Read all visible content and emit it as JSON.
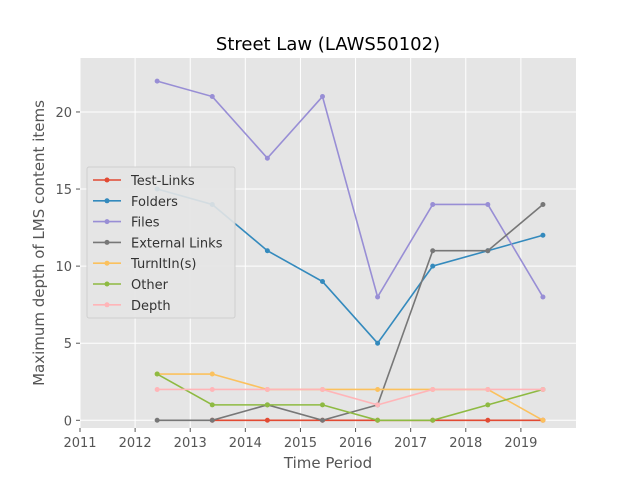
{
  "chart_data": {
    "type": "line",
    "title": "Street Law (LAWS50102)",
    "xlabel": "Time Period",
    "ylabel": "Maximum depth of LMS content items",
    "xlim": [
      2011,
      2020
    ],
    "ylim": [
      -0.5,
      23.5
    ],
    "xticks": [
      2011,
      2012,
      2013,
      2014,
      2015,
      2016,
      2017,
      2018,
      2019
    ],
    "yticks": [
      0,
      5,
      10,
      15,
      20
    ],
    "grid": true,
    "legend_position": "center-left",
    "x": [
      2012.4,
      2013.4,
      2014.4,
      2015.4,
      2016.4,
      2017.4,
      2018.4,
      2019.4
    ],
    "series": [
      {
        "name": "Test-Links",
        "color": "#e24a33",
        "values": [
          null,
          0,
          0,
          0,
          0,
          0,
          0,
          0
        ]
      },
      {
        "name": "Folders",
        "color": "#348abd",
        "values": [
          15,
          14,
          11,
          9,
          5,
          10,
          11,
          12
        ]
      },
      {
        "name": "Files",
        "color": "#988ed5",
        "values": [
          22,
          21,
          17,
          21,
          8,
          14,
          14,
          8
        ]
      },
      {
        "name": "External Links",
        "color": "#777777",
        "values": [
          0,
          0,
          1,
          0,
          1,
          11,
          11,
          14
        ]
      },
      {
        "name": "TurnItIn(s)",
        "color": "#fbc15e",
        "values": [
          3,
          3,
          2,
          2,
          2,
          2,
          2,
          0
        ]
      },
      {
        "name": "Other",
        "color": "#8eba42",
        "values": [
          3,
          1,
          1,
          1,
          0,
          0,
          1,
          2
        ]
      },
      {
        "name": "Depth",
        "color": "#ffb5b8",
        "values": [
          2,
          2,
          2,
          2,
          1,
          2,
          2,
          2
        ]
      }
    ]
  }
}
